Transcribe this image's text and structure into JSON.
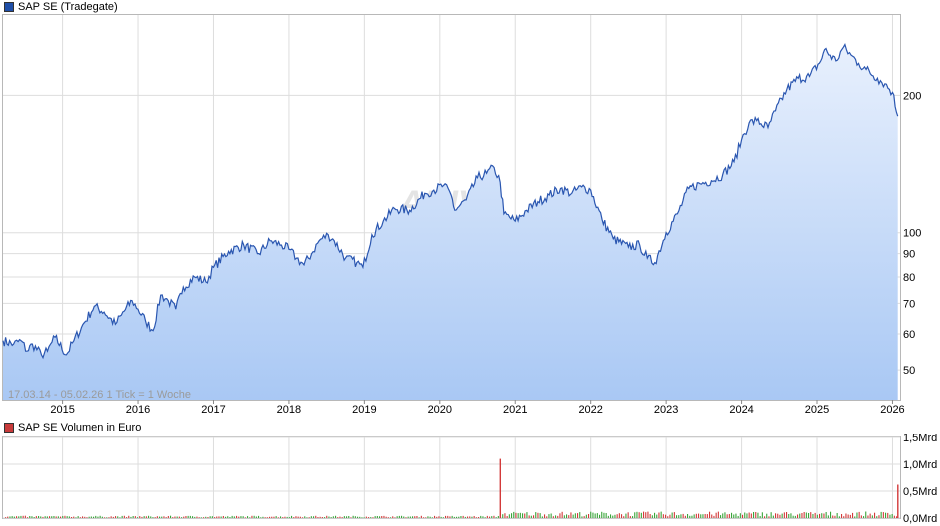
{
  "main_chart": {
    "legend": "SAP SE (Tradegate)",
    "legend_color": "#1f4fa8",
    "info_text": "17.03.14 - 05.02.26   1 Tick = 1 Woche",
    "watermark": "ARIVA",
    "line_color": "#2a56b0",
    "fill_top": "#e8f0fd",
    "fill_bottom": "#a9c8f4"
  },
  "volume_chart": {
    "legend": "SAP SE Volumen in Euro",
    "legend_color": "#c83b3b",
    "up_color": "#3aa53a",
    "down_color": "#d33a3a"
  },
  "chart_data": [
    {
      "type": "area",
      "title": "SAP SE (Tradegate)",
      "scale": "log",
      "ylim": [
        43,
        300
      ],
      "y_ticks": [
        50,
        60,
        70,
        80,
        90,
        100,
        200
      ],
      "y_tick_labels": [
        "50",
        "60",
        "70",
        "80",
        "90",
        "100",
        "200"
      ],
      "x_tick_labels": [
        "2015",
        "2016",
        "2017",
        "2018",
        "2019",
        "2020",
        "2021",
        "2022",
        "2023",
        "2024",
        "2025",
        "2026"
      ],
      "x_ticks": [
        2015.0,
        2016.0,
        2017.0,
        2018.0,
        2019.0,
        2020.0,
        2021.0,
        2022.0,
        2023.0,
        2024.0,
        2025.0,
        2026.0
      ],
      "xlim": [
        2014.21,
        2026.1
      ],
      "grid": true,
      "series": [
        {
          "name": "SAP SE (Tradegate)",
          "x": [
            2014.21,
            2014.35,
            2014.45,
            2014.53,
            2014.6,
            2014.72,
            2014.8,
            2014.9,
            2015.05,
            2015.15,
            2015.25,
            2015.42,
            2015.55,
            2015.7,
            2015.78,
            2015.92,
            2016.0,
            2016.1,
            2016.2,
            2016.3,
            2016.4,
            2016.5,
            2016.6,
            2016.75,
            2016.9,
            2017.0,
            2017.2,
            2017.4,
            2017.6,
            2017.75,
            2017.9,
            2018.0,
            2018.1,
            2018.2,
            2018.3,
            2018.4,
            2018.52,
            2018.6,
            2018.75,
            2018.9,
            2018.98,
            2019.1,
            2019.25,
            2019.4,
            2019.6,
            2019.8,
            2019.92,
            2020.05,
            2020.15,
            2020.2,
            2020.35,
            2020.5,
            2020.62,
            2020.72,
            2020.8,
            2020.85,
            2021.0,
            2021.15,
            2021.3,
            2021.45,
            2021.6,
            2021.75,
            2021.88,
            2022.0,
            2022.15,
            2022.3,
            2022.5,
            2022.65,
            2022.75,
            2022.85,
            2023.0,
            2023.15,
            2023.3,
            2023.45,
            2023.6,
            2023.75,
            2023.9,
            2024.0,
            2024.1,
            2024.2,
            2024.35,
            2024.45,
            2024.6,
            2024.75,
            2024.9,
            2025.05,
            2025.1,
            2025.25,
            2025.35,
            2025.45,
            2025.55,
            2025.65,
            2025.8,
            2025.9,
            2026.0,
            2026.07
          ],
          "y": [
            58,
            57,
            58,
            55,
            57,
            54,
            55,
            59,
            54,
            58,
            62,
            69,
            67,
            63,
            66,
            71,
            68,
            64,
            61,
            73,
            71,
            68,
            76,
            80,
            78,
            84,
            91,
            94,
            90,
            96,
            94,
            92,
            88,
            85,
            90,
            96,
            99,
            96,
            88,
            86,
            84,
            99,
            106,
            113,
            112,
            122,
            124,
            127,
            121,
            112,
            118,
            132,
            135,
            139,
            129,
            110,
            106,
            112,
            117,
            121,
            125,
            122,
            126,
            124,
            107,
            97,
            93,
            94,
            88,
            86,
            100,
            110,
            125,
            128,
            130,
            134,
            143,
            160,
            174,
            176,
            170,
            185,
            206,
            218,
            220,
            238,
            252,
            238,
            255,
            245,
            235,
            228,
            218,
            212,
            203,
            180
          ]
        }
      ]
    },
    {
      "type": "bar",
      "title": "SAP SE Volumen in Euro",
      "ylim": [
        0,
        1.5
      ],
      "y_ticks": [
        0,
        0.5,
        1.0,
        1.5
      ],
      "y_tick_labels": [
        "0,0Mrd",
        "0,5Mrd",
        "1,0Mrd",
        "1,5Mrd"
      ],
      "spikes": [
        {
          "x": 2020.8,
          "value": 1.1
        },
        {
          "x": 2026.07,
          "value": 0.62
        }
      ]
    }
  ]
}
